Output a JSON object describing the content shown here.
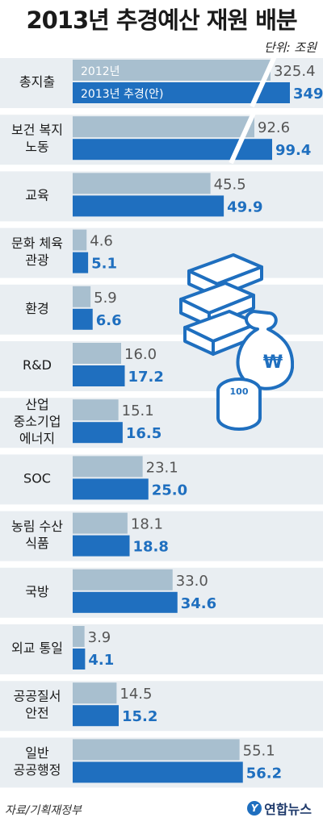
{
  "title": "2013년 추경예산 재원 배분",
  "unit": "단위: 조원",
  "source": "자료/기획재정부",
  "brand": "연합뉴스",
  "colors": {
    "series_2012": "#a8bfcf",
    "series_2013": "#1f6fbf",
    "band": "#e9eef2",
    "value_2012": "#555555",
    "value_2013": "#1f6fbf"
  },
  "chart_data": {
    "type": "bar",
    "orientation": "horizontal",
    "title": "2013년 추경예산 재원 배분",
    "unit": "단위: 조원",
    "categories": [
      "총지출",
      "보건 복지\n노동",
      "교육",
      "문화 체육\n관광",
      "환경",
      "R&D",
      "산업\n중소기업\n에너지",
      "SOC",
      "농림 수산\n식품",
      "국방",
      "외교 통일",
      "공공질서\n안전",
      "일반\n공공행정"
    ],
    "series": [
      {
        "name": "2012년",
        "values": [
          325.4,
          92.6,
          45.5,
          4.6,
          5.9,
          16.0,
          15.1,
          23.1,
          18.1,
          33.0,
          3.9,
          14.5,
          55.1
        ]
      },
      {
        "name": "2013년 추경(안)",
        "values": [
          349,
          99.4,
          49.9,
          5.1,
          6.6,
          17.2,
          16.5,
          25.0,
          18.8,
          34.6,
          4.1,
          15.2,
          56.2
        ]
      }
    ],
    "value_labels": [
      [
        "325.4",
        "92.6",
        "45.5",
        "4.6",
        "5.9",
        "16.0",
        "15.1",
        "23.1",
        "18.1",
        "33.0",
        "3.9",
        "14.5",
        "55.1"
      ],
      [
        "349",
        "99.4",
        "49.9",
        "5.1",
        "6.6",
        "17.2",
        "16.5",
        "25.0",
        "18.8",
        "34.6",
        "4.1",
        "15.2",
        "56.2"
      ]
    ],
    "broken_axis_categories": [
      "총지출",
      "보건 복지\n노동"
    ],
    "legend_placement": "inside-first-bars"
  }
}
